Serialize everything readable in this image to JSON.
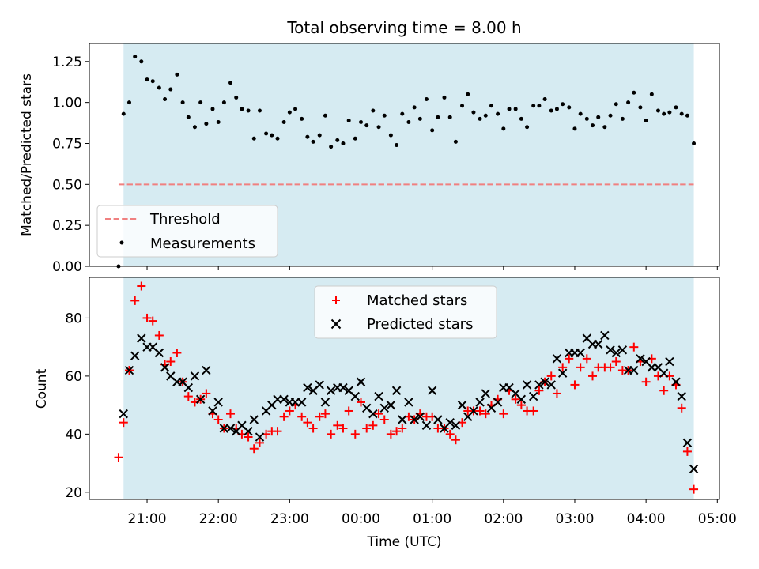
{
  "colors": {
    "shade": "#add8e6",
    "threshold": "#f08080",
    "measurement": "#000000",
    "matched": "#ff0000",
    "predicted": "#000000"
  },
  "chart_data": [
    {
      "type": "scatter",
      "title": "Total observing time = 8.00 h",
      "ylabel": "Matched/Predicted stars",
      "xlabel": "",
      "ylim": [
        0,
        1.36
      ],
      "yticks": [
        0.0,
        0.25,
        0.5,
        0.75,
        1.0,
        1.25
      ],
      "ytick_labels": [
        "0.00",
        "0.25",
        "0.50",
        "0.75",
        "1.00",
        "1.25"
      ],
      "x_unit": "hours since 20:00 UTC",
      "xlim": [
        0.19,
        9.03
      ],
      "shaded_span": [
        0.67,
        8.67
      ],
      "grid": false,
      "legend_position": "lower-left",
      "threshold": {
        "name": "Threshold",
        "y": 0.5,
        "x_range": [
          0.6,
          8.67
        ],
        "style": "dashed"
      },
      "series": [
        {
          "name": "Measurements",
          "marker": "dot",
          "x": [
            0.6,
            0.67,
            0.75,
            0.83,
            0.92,
            1.0,
            1.08,
            1.17,
            1.25,
            1.33,
            1.42,
            1.5,
            1.58,
            1.67,
            1.75,
            1.83,
            1.92,
            2.0,
            2.08,
            2.17,
            2.25,
            2.33,
            2.42,
            2.5,
            2.58,
            2.67,
            2.75,
            2.83,
            2.92,
            3.0,
            3.08,
            3.17,
            3.25,
            3.33,
            3.42,
            3.5,
            3.58,
            3.67,
            3.75,
            3.83,
            3.92,
            4.0,
            4.08,
            4.17,
            4.25,
            4.33,
            4.42,
            4.5,
            4.58,
            4.67,
            4.75,
            4.83,
            4.92,
            5.0,
            5.08,
            5.17,
            5.25,
            5.33,
            5.42,
            5.5,
            5.58,
            5.67,
            5.75,
            5.83,
            5.92,
            6.0,
            6.08,
            6.17,
            6.25,
            6.33,
            6.42,
            6.5,
            6.58,
            6.67,
            6.75,
            6.83,
            6.92,
            7.0,
            7.08,
            7.17,
            7.25,
            7.33,
            7.42,
            7.5,
            7.58,
            7.67,
            7.75,
            7.83,
            7.92,
            8.0,
            8.08,
            8.17,
            8.25,
            8.33,
            8.42,
            8.5,
            8.58,
            8.67
          ],
          "y": [
            0.0,
            0.93,
            1.0,
            1.28,
            1.25,
            1.14,
            1.13,
            1.09,
            1.02,
            1.08,
            1.17,
            1.0,
            0.91,
            0.85,
            1.0,
            0.87,
            0.96,
            0.88,
            1.0,
            1.12,
            1.03,
            0.96,
            0.95,
            0.78,
            0.95,
            0.81,
            0.8,
            0.78,
            0.88,
            0.94,
            0.96,
            0.9,
            0.79,
            0.76,
            0.8,
            0.92,
            0.73,
            0.77,
            0.75,
            0.89,
            0.78,
            0.88,
            0.86,
            0.95,
            0.85,
            0.92,
            0.8,
            0.74,
            0.93,
            0.88,
            0.97,
            0.9,
            1.02,
            0.83,
            0.91,
            1.03,
            0.91,
            0.76,
            0.98,
            1.05,
            0.94,
            0.9,
            0.92,
            0.98,
            0.93,
            0.84,
            0.96,
            0.96,
            0.9,
            0.85,
            0.98,
            0.98,
            1.02,
            0.95,
            0.96,
            0.99,
            0.97,
            0.84,
            0.93,
            0.9,
            0.86,
            0.91,
            0.85,
            0.92,
            0.99,
            0.9,
            1.0,
            1.06,
            0.97,
            0.89,
            1.05,
            0.95,
            0.93,
            0.94,
            0.97,
            0.93,
            0.92,
            0.75
          ]
        }
      ]
    },
    {
      "type": "scatter",
      "title": "",
      "ylabel": "Count",
      "xlabel": "Time (UTC)",
      "ylim": [
        17.5,
        94
      ],
      "yticks": [
        20,
        40,
        60,
        80
      ],
      "ytick_labels": [
        "20",
        "40",
        "60",
        "80"
      ],
      "x_unit": "hours since 20:00 UTC",
      "xlim": [
        0.19,
        9.03
      ],
      "xticks": [
        1,
        2,
        3,
        4,
        5,
        6,
        7,
        8,
        9
      ],
      "xtick_labels": [
        "21:00",
        "22:00",
        "23:00",
        "00:00",
        "01:00",
        "02:00",
        "03:00",
        "04:00",
        "05:00"
      ],
      "shaded_span": [
        0.67,
        8.67
      ],
      "grid": false,
      "legend_position": "top-center",
      "series": [
        {
          "name": "Matched stars",
          "marker": "plus",
          "x": [
            0.6,
            0.67,
            0.75,
            0.83,
            0.92,
            1.0,
            1.08,
            1.17,
            1.25,
            1.33,
            1.42,
            1.5,
            1.58,
            1.67,
            1.75,
            1.83,
            1.92,
            2.0,
            2.08,
            2.17,
            2.25,
            2.33,
            2.42,
            2.5,
            2.58,
            2.67,
            2.75,
            2.83,
            2.92,
            3.0,
            3.08,
            3.17,
            3.25,
            3.33,
            3.42,
            3.5,
            3.58,
            3.67,
            3.75,
            3.83,
            3.92,
            4.0,
            4.08,
            4.17,
            4.25,
            4.33,
            4.42,
            4.5,
            4.58,
            4.67,
            4.75,
            4.83,
            4.92,
            5.0,
            5.08,
            5.17,
            5.25,
            5.33,
            5.42,
            5.5,
            5.58,
            5.67,
            5.75,
            5.83,
            5.92,
            6.0,
            6.08,
            6.17,
            6.25,
            6.33,
            6.42,
            6.5,
            6.58,
            6.67,
            6.75,
            6.83,
            6.92,
            7.0,
            7.08,
            7.17,
            7.25,
            7.33,
            7.42,
            7.5,
            7.58,
            7.67,
            7.75,
            7.83,
            7.92,
            8.0,
            8.08,
            8.17,
            8.25,
            8.33,
            8.42,
            8.5,
            8.58,
            8.67
          ],
          "y": [
            32,
            44,
            62,
            86,
            91,
            80,
            79,
            74,
            64,
            65,
            68,
            58,
            53,
            51,
            52,
            54,
            47,
            45,
            42,
            47,
            42,
            40,
            39,
            35,
            37,
            40,
            41,
            41,
            46,
            48,
            50,
            46,
            44,
            42,
            46,
            47,
            40,
            43,
            42,
            48,
            40,
            51,
            42,
            43,
            47,
            45,
            40,
            41,
            42,
            46,
            45,
            47,
            46,
            46,
            42,
            42,
            40,
            38,
            44,
            48,
            48,
            48,
            47,
            50,
            52,
            47,
            55,
            52,
            50,
            48,
            48,
            55,
            58,
            60,
            54,
            63,
            66,
            57,
            63,
            66,
            60,
            63,
            63,
            63,
            65,
            62,
            62,
            70,
            65,
            58,
            66,
            60,
            55,
            60,
            57,
            49,
            34,
            21
          ]
        },
        {
          "name": "Predicted stars",
          "marker": "x",
          "x": [
            0.67,
            0.75,
            0.83,
            0.92,
            1.0,
            1.08,
            1.17,
            1.25,
            1.33,
            1.42,
            1.5,
            1.58,
            1.67,
            1.75,
            1.83,
            1.92,
            2.0,
            2.08,
            2.17,
            2.25,
            2.33,
            2.42,
            2.5,
            2.58,
            2.67,
            2.75,
            2.83,
            2.92,
            3.0,
            3.08,
            3.17,
            3.25,
            3.33,
            3.42,
            3.5,
            3.58,
            3.67,
            3.75,
            3.83,
            3.92,
            4.0,
            4.08,
            4.17,
            4.25,
            4.33,
            4.42,
            4.5,
            4.58,
            4.67,
            4.75,
            4.83,
            4.92,
            5.0,
            5.08,
            5.17,
            5.25,
            5.33,
            5.42,
            5.5,
            5.58,
            5.67,
            5.75,
            5.83,
            5.92,
            6.0,
            6.08,
            6.17,
            6.25,
            6.33,
            6.42,
            6.5,
            6.58,
            6.67,
            6.75,
            6.83,
            6.92,
            7.0,
            7.08,
            7.17,
            7.25,
            7.33,
            7.42,
            7.5,
            7.58,
            7.67,
            7.75,
            7.83,
            7.92,
            8.0,
            8.08,
            8.17,
            8.25,
            8.33,
            8.42,
            8.5,
            8.58,
            8.67
          ],
          "y": [
            47,
            62,
            67,
            73,
            70,
            70,
            68,
            63,
            60,
            58,
            58,
            56,
            60,
            52,
            62,
            48,
            51,
            42,
            42,
            41,
            43,
            41,
            45,
            39,
            48,
            50,
            52,
            52,
            51,
            51,
            51,
            56,
            55,
            57,
            51,
            55,
            56,
            56,
            55,
            53,
            58,
            49,
            47,
            53,
            49,
            50,
            55,
            45,
            51,
            45,
            46,
            43,
            55,
            45,
            42,
            44,
            43,
            50,
            46,
            48,
            51,
            54,
            49,
            51,
            56,
            56,
            54,
            52,
            57,
            53,
            57,
            58,
            57,
            66,
            61,
            68,
            68,
            68,
            73,
            71,
            71,
            74,
            69,
            68,
            69,
            62,
            62,
            66,
            65,
            63,
            63,
            61,
            65,
            58,
            53,
            37,
            28
          ]
        }
      ]
    }
  ]
}
